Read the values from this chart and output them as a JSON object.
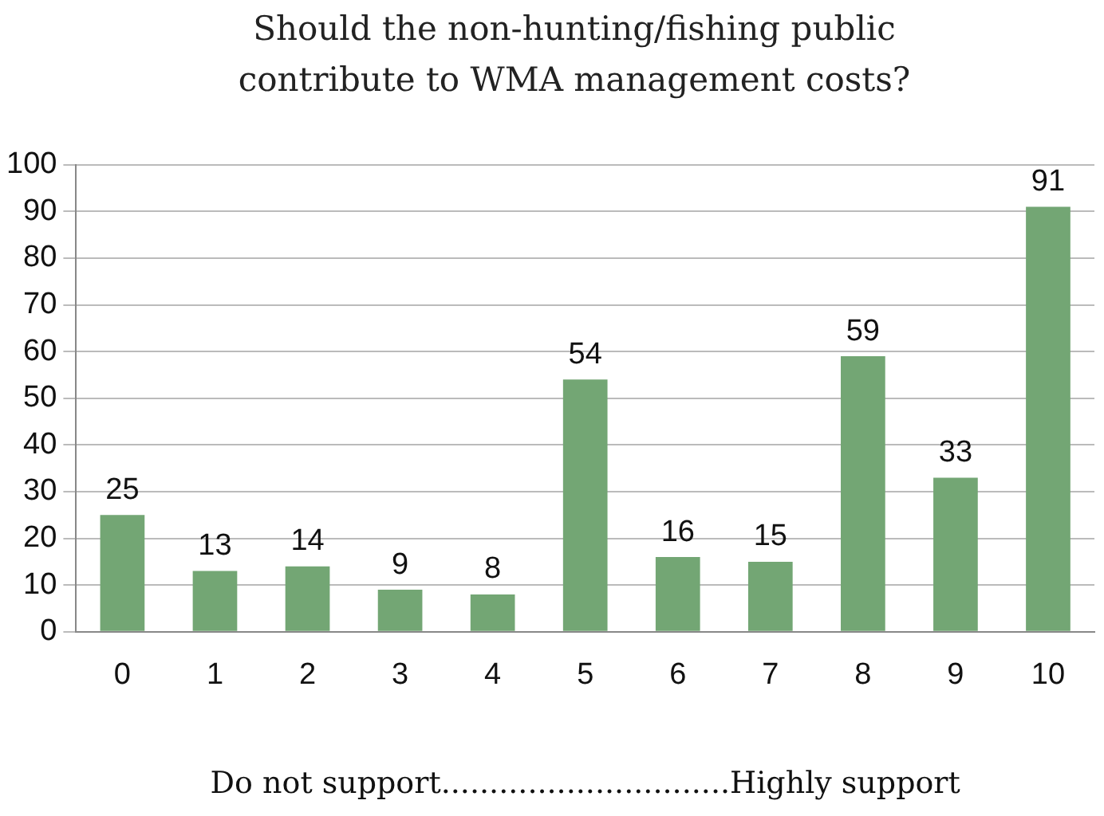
{
  "chart_data": {
    "type": "bar",
    "title": "Should the non-hunting/fishing public contribute to WMA management costs?",
    "xlabel": "Do not support..............................Highly support",
    "categories": [
      "0",
      "1",
      "2",
      "3",
      "4",
      "5",
      "6",
      "7",
      "8",
      "9",
      "10"
    ],
    "values": [
      25,
      13,
      14,
      9,
      8,
      54,
      16,
      15,
      59,
      33,
      91
    ],
    "color": "#73a674",
    "ylim": [
      0,
      100
    ],
    "yticks": [
      0,
      10,
      20,
      30,
      40,
      50,
      60,
      70,
      80,
      90,
      100
    ],
    "grid": "y",
    "data_labels": true,
    "legend": false
  }
}
